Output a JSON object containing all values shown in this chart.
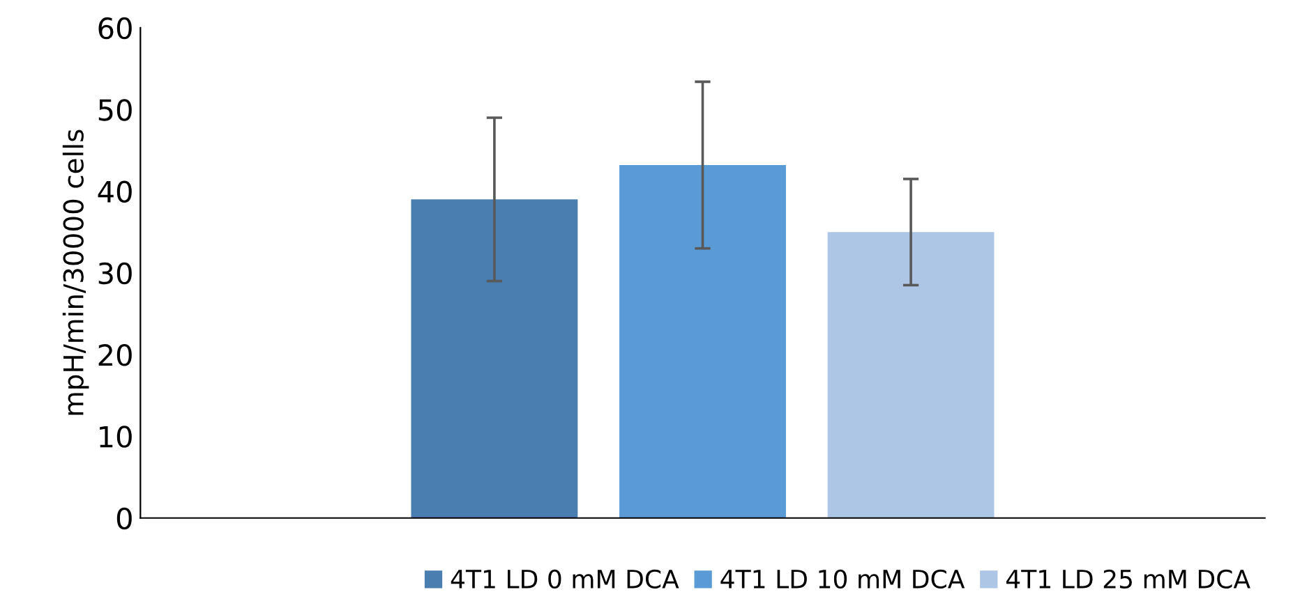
{
  "chart_data": {
    "type": "bar",
    "ylabel": "mpH/min/30000 cells",
    "categories": [
      null
    ],
    "series": [
      {
        "name": "4T1 LD 0 mM DCA",
        "color": "#4a7eb0",
        "values": [
          39
        ],
        "errors": [
          10
        ]
      },
      {
        "name": "4T1 LD 10 mM DCA",
        "color": "#5b9bd5",
        "values": [
          43.2
        ],
        "errors": [
          10.2
        ]
      },
      {
        "name": "4T1 LD 25 mM DCA",
        "color": "#adc6e5",
        "values": [
          35
        ],
        "errors": [
          6.5
        ]
      }
    ],
    "ylim": [
      0,
      60
    ],
    "yticks": [
      0,
      10,
      20,
      30,
      40,
      50,
      60
    ],
    "grid": false,
    "legend": "bottom"
  }
}
